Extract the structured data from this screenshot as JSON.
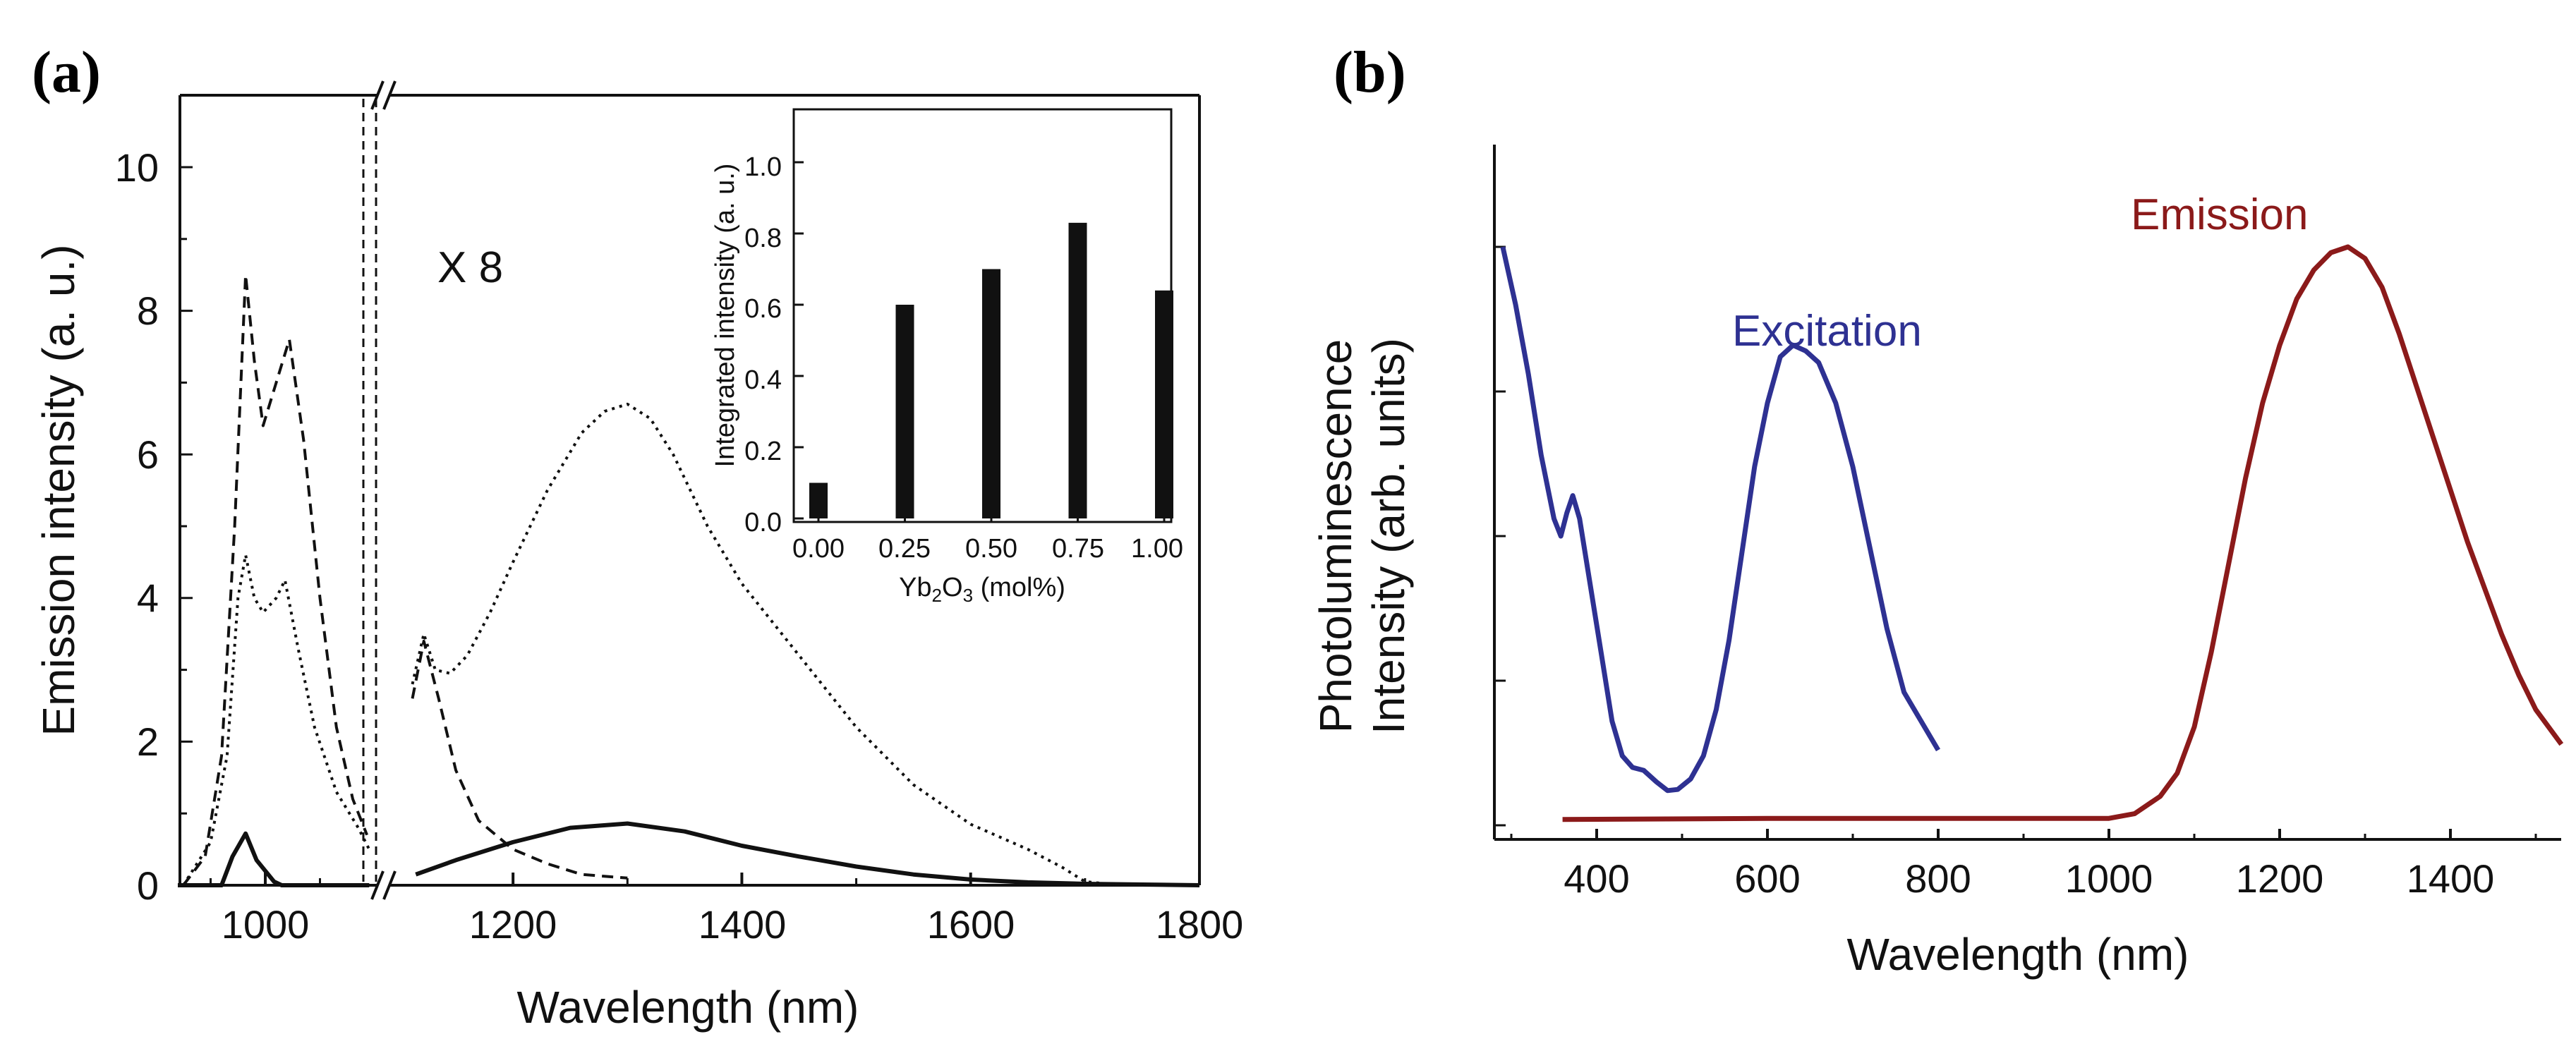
{
  "figure": {
    "panel_a_label": "(a)",
    "panel_b_label": "(b)"
  },
  "chart_data": [
    {
      "type": "line",
      "panel": "(a)",
      "xlabel": "Wavelength (nm)",
      "ylabel": "Emission intensity (a. u.)",
      "ylim": [
        0,
        11
      ],
      "x_break": "axis break between 1100 and 1110 nm",
      "x_ticks_left": [
        "1000"
      ],
      "x_ticks_right": [
        "1200",
        "1400",
        "1600",
        "1800"
      ],
      "y_ticks": [
        "0",
        "2",
        "4",
        "6",
        "8",
        "10"
      ],
      "annotation": "X 8",
      "series": [
        {
          "name": "solid",
          "style": "solid",
          "left_points": [
            [
              920,
              0
            ],
            [
              960,
              0
            ],
            [
              970,
              0.4
            ],
            [
              982,
              0.72
            ],
            [
              992,
              0.35
            ],
            [
              1000,
              0.2
            ],
            [
              1008,
              0.05
            ],
            [
              1015,
              0
            ],
            [
              1095,
              0
            ]
          ],
          "right_points": [
            [
              1115,
              0.15
            ],
            [
              1150,
              0.35
            ],
            [
              1200,
              0.6
            ],
            [
              1250,
              0.8
            ],
            [
              1300,
              0.86
            ],
            [
              1350,
              0.75
            ],
            [
              1400,
              0.55
            ],
            [
              1450,
              0.4
            ],
            [
              1500,
              0.26
            ],
            [
              1550,
              0.15
            ],
            [
              1600,
              0.08
            ],
            [
              1650,
              0.04
            ],
            [
              1700,
              0.02
            ],
            [
              1750,
              0.01
            ],
            [
              1800,
              0
            ]
          ]
        },
        {
          "name": "dashed",
          "style": "dashed",
          "left_points": [
            [
              925,
              0
            ],
            [
              945,
              0.4
            ],
            [
              960,
              1.8
            ],
            [
              972,
              5.0
            ],
            [
              982,
              8.5
            ],
            [
              990,
              7.3
            ],
            [
              998,
              6.4
            ],
            [
              1010,
              7.0
            ],
            [
              1022,
              7.6
            ],
            [
              1035,
              6.2
            ],
            [
              1050,
              4.0
            ],
            [
              1065,
              2.2
            ],
            [
              1080,
              1.2
            ],
            [
              1093,
              0.7
            ]
          ],
          "right_points": [
            [
              1112,
              2.6
            ],
            [
              1122,
              3.4
            ],
            [
              1135,
              2.6
            ],
            [
              1150,
              1.6
            ],
            [
              1170,
              0.9
            ],
            [
              1200,
              0.5
            ],
            [
              1230,
              0.3
            ],
            [
              1260,
              0.15
            ],
            [
              1300,
              0.1
            ]
          ]
        },
        {
          "name": "dotted",
          "style": "dotted",
          "left_points": [
            [
              925,
              0
            ],
            [
              950,
              0.6
            ],
            [
              965,
              1.8
            ],
            [
              975,
              4.0
            ],
            [
              982,
              4.6
            ],
            [
              990,
              4.0
            ],
            [
              998,
              3.8
            ],
            [
              1010,
              4.0
            ],
            [
              1018,
              4.25
            ],
            [
              1030,
              3.3
            ],
            [
              1045,
              2.2
            ],
            [
              1065,
              1.3
            ],
            [
              1085,
              0.8
            ],
            [
              1095,
              0.5
            ]
          ],
          "right_points": [
            [
              1112,
              2.8
            ],
            [
              1122,
              3.5
            ],
            [
              1132,
              3.0
            ],
            [
              1145,
              2.95
            ],
            [
              1160,
              3.2
            ],
            [
              1180,
              3.8
            ],
            [
              1200,
              4.5
            ],
            [
              1230,
              5.5
            ],
            [
              1260,
              6.3
            ],
            [
              1280,
              6.6
            ],
            [
              1300,
              6.7
            ],
            [
              1320,
              6.5
            ],
            [
              1340,
              6.0
            ],
            [
              1370,
              5.0
            ],
            [
              1400,
              4.2
            ],
            [
              1450,
              3.2
            ],
            [
              1500,
              2.2
            ],
            [
              1550,
              1.4
            ],
            [
              1600,
              0.85
            ],
            [
              1650,
              0.5
            ],
            [
              1680,
              0.25
            ],
            [
              1700,
              0.05
            ],
            [
              1720,
              0.02
            ],
            [
              1800,
              0
            ]
          ]
        }
      ],
      "inset": {
        "type": "bar",
        "categories": [
          "0.00",
          "0.25",
          "0.50",
          "0.75",
          "1.00"
        ],
        "values": [
          0.1,
          0.6,
          0.7,
          0.83,
          0.64
        ],
        "ylim": [
          0,
          1.1
        ],
        "y_ticks": [
          "0.0",
          "0.2",
          "0.4",
          "0.6",
          "0.8",
          "1.0"
        ],
        "xlabel": "Yb",
        "xlabel_sub1": "2",
        "xlabel_mid": "O",
        "xlabel_sub2": "3",
        "xlabel_unit": " (mol%)",
        "ylabel": "Integrated intensity (a. u.)"
      }
    },
    {
      "type": "line",
      "panel": "(b)",
      "xlabel": "Wavelength (nm)",
      "ylabel_line1": "Photoluminescence",
      "ylabel_line2": "Intensity (arb. units)",
      "xlim": [
        280,
        1530
      ],
      "ylim": [
        0,
        1
      ],
      "x_ticks": [
        "400",
        "600",
        "800",
        "1000",
        "1200",
        "1400"
      ],
      "series": [
        {
          "name": "Excitation",
          "label": "Excitation",
          "color": "#2e3192",
          "points": [
            [
              290,
              1.0
            ],
            [
              305,
              0.9
            ],
            [
              320,
              0.78
            ],
            [
              335,
              0.64
            ],
            [
              350,
              0.53
            ],
            [
              358,
              0.5
            ],
            [
              365,
              0.54
            ],
            [
              372,
              0.57
            ],
            [
              380,
              0.53
            ],
            [
              392,
              0.42
            ],
            [
              405,
              0.3
            ],
            [
              418,
              0.18
            ],
            [
              430,
              0.12
            ],
            [
              442,
              0.1
            ],
            [
              455,
              0.095
            ],
            [
              470,
              0.075
            ],
            [
              483,
              0.06
            ],
            [
              495,
              0.062
            ],
            [
              510,
              0.08
            ],
            [
              525,
              0.12
            ],
            [
              540,
              0.2
            ],
            [
              555,
              0.32
            ],
            [
              570,
              0.47
            ],
            [
              585,
              0.62
            ],
            [
              600,
              0.73
            ],
            [
              615,
              0.81
            ],
            [
              630,
              0.83
            ],
            [
              645,
              0.82
            ],
            [
              660,
              0.8
            ],
            [
              680,
              0.73
            ],
            [
              700,
              0.62
            ],
            [
              720,
              0.48
            ],
            [
              740,
              0.34
            ],
            [
              760,
              0.23
            ],
            [
              780,
              0.18
            ],
            [
              800,
              0.13
            ]
          ]
        },
        {
          "name": "Emission",
          "label": "Emission",
          "color": "#8b1a1a",
          "points": [
            [
              360,
              0.01
            ],
            [
              600,
              0.012
            ],
            [
              900,
              0.012
            ],
            [
              1000,
              0.012
            ],
            [
              1030,
              0.02
            ],
            [
              1060,
              0.05
            ],
            [
              1080,
              0.09
            ],
            [
              1100,
              0.17
            ],
            [
              1120,
              0.3
            ],
            [
              1140,
              0.45
            ],
            [
              1160,
              0.6
            ],
            [
              1180,
              0.73
            ],
            [
              1200,
              0.83
            ],
            [
              1220,
              0.91
            ],
            [
              1240,
              0.96
            ],
            [
              1260,
              0.99
            ],
            [
              1280,
              1.0
            ],
            [
              1300,
              0.98
            ],
            [
              1320,
              0.93
            ],
            [
              1340,
              0.85
            ],
            [
              1360,
              0.76
            ],
            [
              1380,
              0.67
            ],
            [
              1400,
              0.58
            ],
            [
              1420,
              0.49
            ],
            [
              1440,
              0.41
            ],
            [
              1460,
              0.33
            ],
            [
              1480,
              0.26
            ],
            [
              1500,
              0.2
            ],
            [
              1520,
              0.16
            ],
            [
              1530,
              0.14
            ]
          ]
        }
      ]
    }
  ]
}
